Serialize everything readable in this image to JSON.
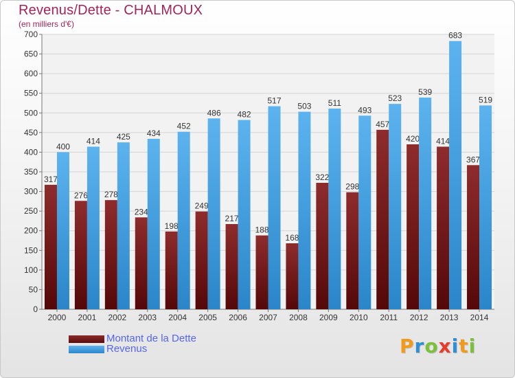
{
  "title": "Revenus/Dette - CHALMOUX",
  "subtitle": "(en milliers d'€)",
  "logo_text": "Proxiti",
  "colors": {
    "title": "#a0245a",
    "dette": "#7a1a1e",
    "revenus": "#4aa3e0",
    "legend_text": "#5566ee"
  },
  "legend": [
    {
      "label": "Montant de la Dette",
      "color": "#7a1a1e"
    },
    {
      "label": "Revenus",
      "color": "#4aa3e0"
    }
  ],
  "chart_data": {
    "type": "bar",
    "categories": [
      "2000",
      "2001",
      "2002",
      "2003",
      "2004",
      "2005",
      "2006",
      "2007",
      "2008",
      "2009",
      "2010",
      "2011",
      "2012",
      "2013",
      "2014"
    ],
    "series": [
      {
        "name": "Montant de la Dette",
        "values": [
          317,
          276,
          278,
          234,
          198,
          249,
          217,
          188,
          168,
          322,
          298,
          457,
          420,
          414,
          367
        ]
      },
      {
        "name": "Revenus",
        "values": [
          400,
          414,
          425,
          434,
          452,
          486,
          482,
          517,
          503,
          511,
          493,
          523,
          539,
          683,
          519
        ]
      }
    ],
    "ylim": [
      0,
      700
    ],
    "yticks": [
      0,
      50,
      100,
      150,
      200,
      250,
      300,
      350,
      400,
      450,
      500,
      550,
      600,
      650,
      700
    ],
    "grid": true,
    "legend_position": "bottom-left"
  }
}
